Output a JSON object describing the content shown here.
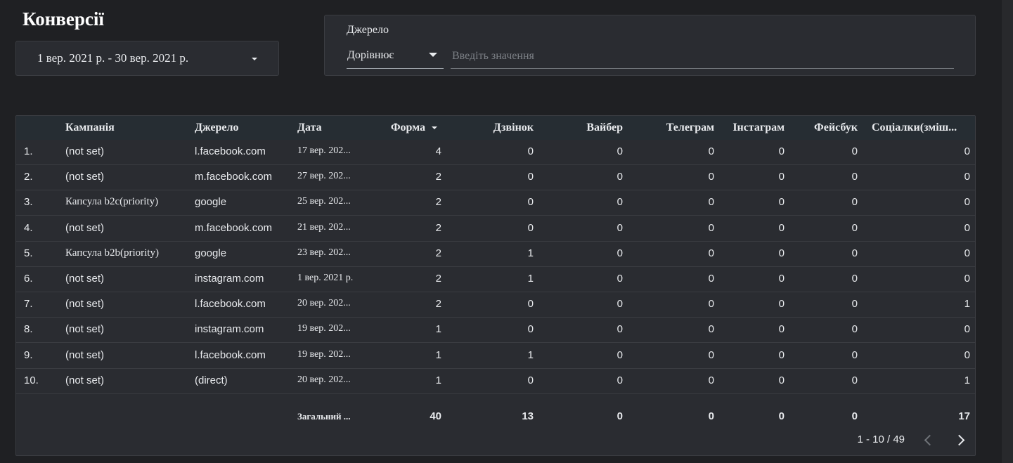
{
  "header": {
    "title": "Конверсії"
  },
  "date_range": "1 вер. 2021 р. - 30 вер. 2021 р.",
  "filter": {
    "label": "Джерело",
    "operator": "Дорівнює",
    "placeholder": "Введіть значення"
  },
  "table": {
    "columns": [
      "Кампанія",
      "Джерело",
      "Дата",
      "Форма",
      "Дзвінок",
      "Вайбер",
      "Телеграм",
      "Інстаграм",
      "Фейсбук",
      "Соціалки(зміш..."
    ],
    "rows": [
      [
        "1.",
        "(not set)",
        "l.facebook.com",
        "17 вер. 202...",
        4,
        0,
        0,
        0,
        0,
        0,
        0
      ],
      [
        "2.",
        "(not set)",
        "m.facebook.com",
        "27 вер. 202...",
        2,
        0,
        0,
        0,
        0,
        0,
        0
      ],
      [
        "3.",
        "Капсула b2c(priority)",
        "google",
        "25 вер. 202...",
        2,
        0,
        0,
        0,
        0,
        0,
        0
      ],
      [
        "4.",
        "(not set)",
        "m.facebook.com",
        "21 вер. 202...",
        2,
        0,
        0,
        0,
        0,
        0,
        0
      ],
      [
        "5.",
        "Капсула b2b(priority)",
        "google",
        "23 вер. 202...",
        2,
        1,
        0,
        0,
        0,
        0,
        0
      ],
      [
        "6.",
        "(not set)",
        "instagram.com",
        "1 вер. 2021 р.",
        2,
        1,
        0,
        0,
        0,
        0,
        0
      ],
      [
        "7.",
        "(not set)",
        "l.facebook.com",
        "20 вер. 202...",
        2,
        0,
        0,
        0,
        0,
        0,
        1
      ],
      [
        "8.",
        "(not set)",
        "instagram.com",
        "19 вер. 202...",
        1,
        0,
        0,
        0,
        0,
        0,
        0
      ],
      [
        "9.",
        "(not set)",
        "l.facebook.com",
        "19 вер. 202...",
        1,
        1,
        0,
        0,
        0,
        0,
        0
      ],
      [
        "10.",
        "(not set)",
        "(direct)",
        "20 вер. 202...",
        1,
        0,
        0,
        0,
        0,
        0,
        1
      ]
    ],
    "totals": {
      "label": "Загальний ...",
      "values": [
        40,
        13,
        0,
        0,
        0,
        0,
        17
      ]
    }
  },
  "pagination": "1 - 10 / 49"
}
